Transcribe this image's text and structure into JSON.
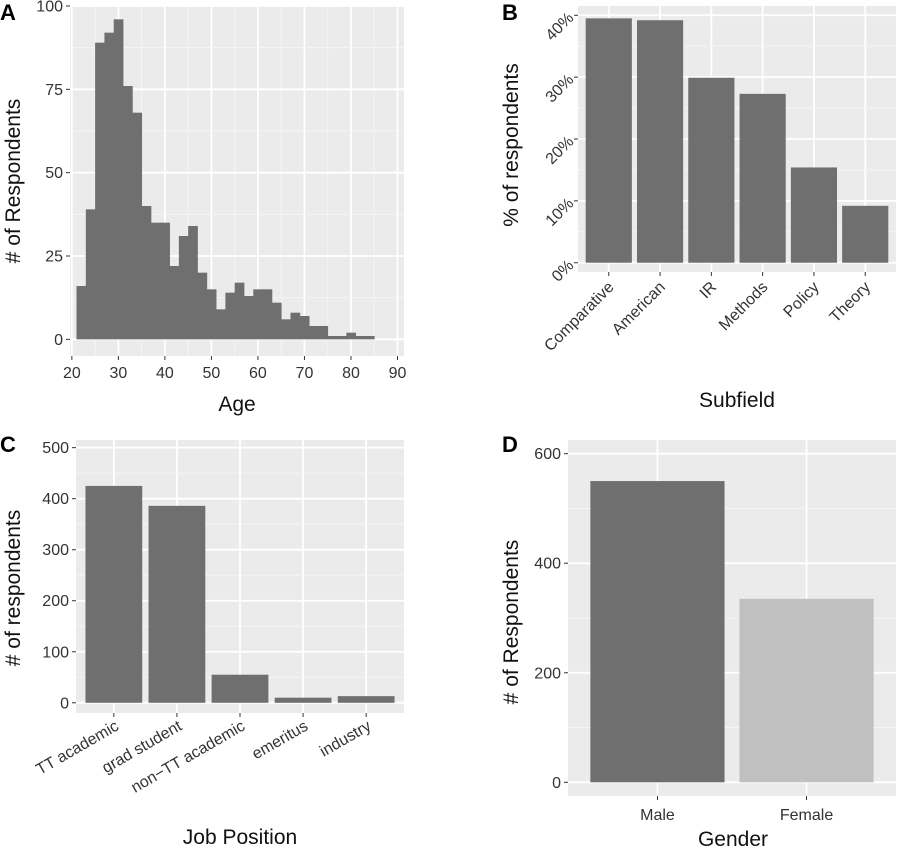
{
  "chart_data": [
    {
      "panel": "A",
      "type": "bar",
      "subtype": "histogram",
      "xlabel": "Age",
      "ylabel": "# of Respondents",
      "xlim": [
        19.6,
        91.4
      ],
      "ylim": [
        -5,
        100
      ],
      "xticks": [
        20,
        30,
        40,
        50,
        60,
        70,
        80,
        90
      ],
      "yticks": [
        0,
        25,
        50,
        75,
        100
      ],
      "x": [
        22,
        24,
        26,
        28,
        30,
        32,
        34,
        36,
        38,
        40,
        42,
        44,
        46,
        48,
        50,
        52,
        54,
        56,
        58,
        60,
        62,
        64,
        66,
        68,
        70,
        72,
        74,
        76,
        78,
        80,
        82,
        84
      ],
      "binwidth": 2,
      "values": [
        16,
        39,
        89,
        92,
        96,
        76,
        68,
        40,
        35,
        35,
        22,
        31,
        34,
        20,
        15,
        9,
        14,
        17,
        13,
        15,
        15,
        11,
        6,
        8,
        7,
        4,
        4,
        1,
        1,
        2,
        1,
        1
      ],
      "color": "#6f6f6f"
    },
    {
      "panel": "B",
      "type": "bar",
      "xlabel": "Subfield",
      "ylabel": "% of respondents",
      "categories": [
        "Comparative",
        "American",
        "IR",
        "Methods",
        "Policy",
        "Theory"
      ],
      "values": [
        39.5,
        39.2,
        29.9,
        27.3,
        15.4,
        9.2
      ],
      "ylim": [
        -1.5,
        41.5
      ],
      "yticks": [
        0,
        10,
        20,
        30,
        40
      ],
      "ytick_labels": [
        "0%",
        "10%",
        "20%",
        "30%",
        "40%"
      ],
      "color": "#6f6f6f"
    },
    {
      "panel": "C",
      "type": "bar",
      "xlabel": "Job Position",
      "ylabel": "# of respondents",
      "categories": [
        "TT academic",
        "grad student",
        "non−TT academic",
        "emeritus",
        "industry"
      ],
      "values": [
        425,
        386,
        55,
        10,
        13
      ],
      "ylim": [
        -20,
        515
      ],
      "yticks": [
        0,
        100,
        200,
        300,
        400,
        500
      ],
      "color": "#6f6f6f"
    },
    {
      "panel": "D",
      "type": "bar",
      "xlabel": "Gender",
      "ylabel": "# of Respondents",
      "categories": [
        "Male",
        "Female"
      ],
      "values": [
        550,
        335
      ],
      "ylim": [
        -25,
        625
      ],
      "yticks": [
        0,
        200,
        400,
        600
      ],
      "colors": [
        "#6f6f6f",
        "#c0c0c0"
      ]
    }
  ]
}
